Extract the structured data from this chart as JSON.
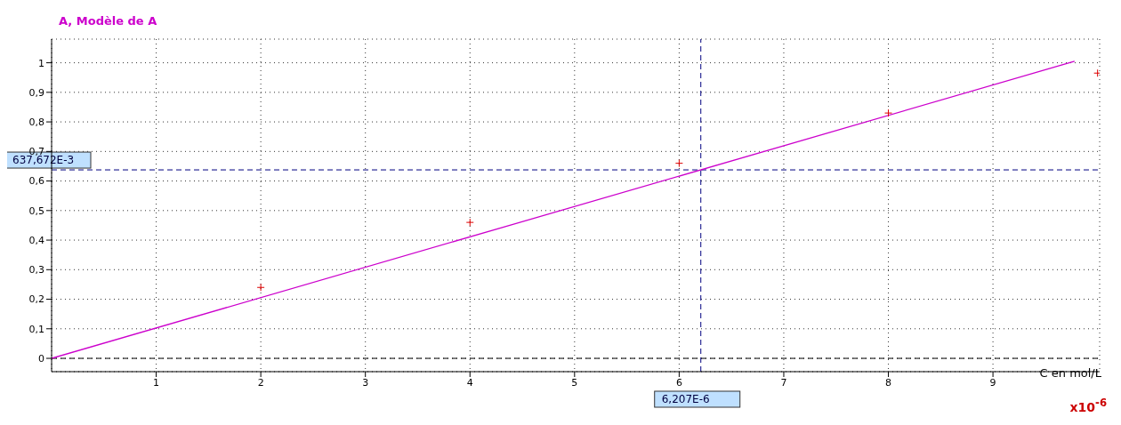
{
  "chart_data": {
    "type": "scatter",
    "ylabel": "A, Modèle de A",
    "xlabel": "C en mol/L",
    "annotations": [
      "x10$^{-6}$"
    ],
    "xlim": [
      0,
      10.02
    ],
    "xticks": [
      1,
      2,
      3,
      4,
      5,
      6,
      7,
      8,
      9
    ],
    "ylim": [
      -0.045,
      1.08
    ],
    "yticks": [
      0,
      {
        "value": 0.1,
        "label": "0,1"
      },
      {
        "value": 0.2,
        "label": "0,2"
      },
      {
        "value": 0.3,
        "label": "0,3"
      },
      {
        "value": 0.4,
        "label": "0,4"
      },
      {
        "value": 0.5,
        "label": "0,5"
      },
      {
        "value": 0.6,
        "label": "0,6"
      },
      {
        "value": 0.7,
        "label": "0,7"
      },
      {
        "value": 0.8,
        "label": "0,8"
      },
      {
        "value": 0.9,
        "label": "0,9"
      },
      1
    ],
    "grid": true,
    "series": [
      {
        "color": "#dd0000",
        "marker": "cross",
        "x": [
          2,
          4,
          6,
          8,
          10
        ],
        "values": [
          0.24,
          0.46,
          0.66,
          0.83,
          0.965
        ]
      },
      {
        "type": "line",
        "color": "#cc00cc",
        "marker": "none",
        "x": [
          0,
          9.78
        ],
        "values": [
          0,
          1.005
        ]
      }
    ],
    "ref_lines": [
      {
        "axis": "y",
        "value": 0.637672,
        "label": "637,672E-3",
        "color": "#000080",
        "line_style": "dashed"
      },
      {
        "axis": "x",
        "value": 6.207,
        "label": "6,207E-6",
        "color": "#000080",
        "line_style": "dashed"
      },
      {
        "axis": "y",
        "value": 0,
        "color": "#000000",
        "line_style": "dashed"
      }
    ]
  }
}
